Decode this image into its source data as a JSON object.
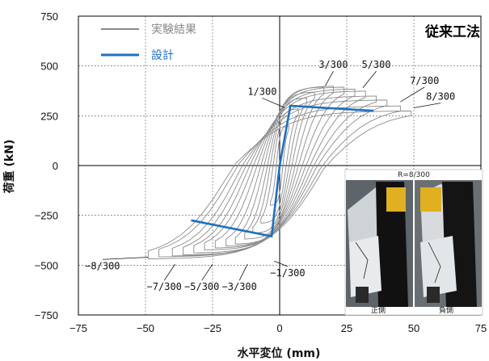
{
  "chart_data": {
    "type": "line",
    "title": "従来工法",
    "xlabel": "水平変位 (mm)",
    "ylabel": "荷重 (kN)",
    "xlim": [
      -75,
      75
    ],
    "ylim": [
      -750,
      750
    ],
    "x_ticks": [
      "−75",
      "−50",
      "−25",
      "0",
      "25",
      "50",
      "75"
    ],
    "y_ticks": [
      "750",
      "500",
      "250",
      "0",
      "−250",
      "−500",
      "−750"
    ],
    "x_tick_values": [
      -75,
      -50,
      -25,
      0,
      25,
      50,
      75
    ],
    "y_tick_values": [
      750,
      500,
      250,
      0,
      -250,
      -500,
      -750
    ],
    "grid": true,
    "legend_position": "top-left",
    "legend": [
      {
        "label": "実験結果",
        "color": "#8a8a8a"
      },
      {
        "label": "設計",
        "color": "#1f6fbf"
      }
    ],
    "series": [
      {
        "name": "実験結果",
        "color": "#8a8a8a",
        "cycles": [
          {
            "dpos": 3.5,
            "fpos": 200,
            "dneg": -3.5,
            "fneg": -200
          },
          {
            "dpos": 7,
            "fpos": 285,
            "dneg": -7,
            "fneg": -290
          },
          {
            "dpos": 10,
            "fpos": 340,
            "dneg": -10,
            "fneg": -340
          },
          {
            "dpos": 13,
            "fpos": 370,
            "dneg": -13,
            "fneg": -370
          },
          {
            "dpos": 16.5,
            "fpos": 395,
            "dneg": -16.5,
            "fneg": -395
          },
          {
            "dpos": 20,
            "fpos": 400,
            "dneg": -20,
            "fneg": -405
          },
          {
            "dpos": 24,
            "fpos": 395,
            "dneg": -24,
            "fneg": -415
          },
          {
            "dpos": 28,
            "fpos": 385,
            "dneg": -28,
            "fneg": -425
          },
          {
            "dpos": 32,
            "fpos": 375,
            "dneg": -32,
            "fneg": -440
          },
          {
            "dpos": 36,
            "fpos": 350,
            "dneg": -36,
            "fneg": -450
          },
          {
            "dpos": 40,
            "fpos": 330,
            "dneg": -40,
            "fneg": -455
          },
          {
            "dpos": 45,
            "fpos": 300,
            "dneg": -45,
            "fneg": -460
          },
          {
            "dpos": 49,
            "fpos": 275,
            "dneg": -49,
            "fneg": -470
          }
        ]
      },
      {
        "name": "設計",
        "color": "#1f6fbf",
        "x": [
          -33,
          -3,
          0,
          4,
          35
        ],
        "y": [
          -275,
          -355,
          0,
          300,
          275
        ]
      }
    ],
    "annotations": [
      {
        "text": "1/300",
        "label_x": -6.5,
        "label_y": 355,
        "point_x": 2,
        "point_y": 290
      },
      {
        "text": "3/300",
        "label_x": 20,
        "label_y": 490,
        "point_x": 17,
        "point_y": 400
      },
      {
        "text": "5/300",
        "label_x": 36,
        "label_y": 490,
        "point_x": 31,
        "point_y": 390
      },
      {
        "text": "7/300",
        "label_x": 54,
        "label_y": 410,
        "point_x": 45,
        "point_y": 320
      },
      {
        "text": "8/300",
        "label_x": 60,
        "label_y": 330,
        "point_x": 50,
        "point_y": 290
      },
      {
        "text": "−8/300",
        "label_x": -66,
        "label_y": -520,
        "point_x": -49,
        "point_y": -460
      },
      {
        "text": "−7/300",
        "label_x": -43,
        "label_y": -625,
        "point_x": -39,
        "point_y": -495
      },
      {
        "text": "−5/300",
        "label_x": -29,
        "label_y": -625,
        "point_x": -25,
        "point_y": -495
      },
      {
        "text": "−3/300",
        "label_x": -15,
        "label_y": -625,
        "point_x": -12,
        "point_y": -495
      },
      {
        "text": "−1/300",
        "label_x": 3,
        "label_y": -555,
        "point_x": -2,
        "point_y": -480
      }
    ]
  },
  "photo": {
    "caption": "R=8/300",
    "left_label": "正側",
    "right_label": "負側"
  }
}
